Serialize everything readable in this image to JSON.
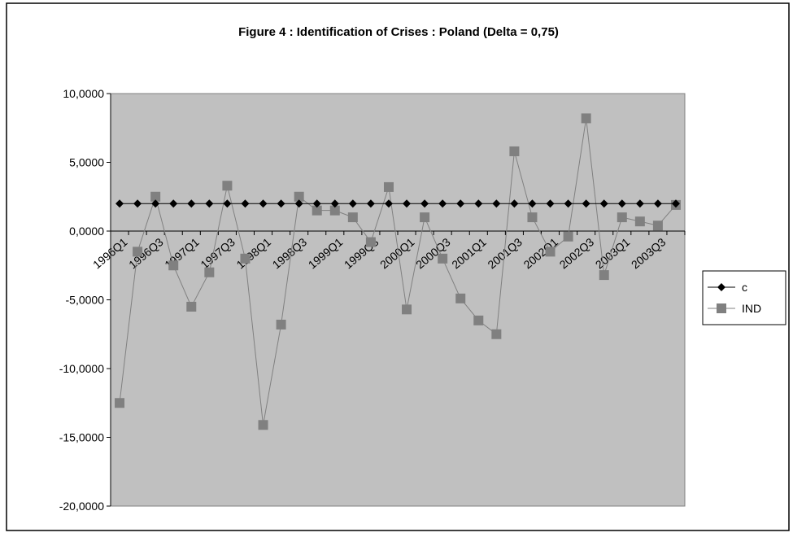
{
  "chart_data": {
    "type": "line",
    "title": "Figure 4 : Identification of Crises : Poland (Delta = 0,75)",
    "categories": [
      "1996Q1",
      null,
      "1996Q3",
      null,
      "1997Q1",
      null,
      "1997Q3",
      null,
      "1998Q1",
      null,
      "1998Q3",
      null,
      "1999Q1",
      null,
      "1999Q3",
      null,
      "2000Q1",
      null,
      "2000Q3",
      null,
      "2001Q1",
      null,
      "2001Q3",
      null,
      "2002Q1",
      null,
      "2002Q3",
      null,
      "2003Q1",
      null,
      "2003Q3",
      null
    ],
    "series": [
      {
        "name": "c",
        "color": "#000000",
        "marker": "diamond",
        "values": [
          2,
          2,
          2,
          2,
          2,
          2,
          2,
          2,
          2,
          2,
          2,
          2,
          2,
          2,
          2,
          2,
          2,
          2,
          2,
          2,
          2,
          2,
          2,
          2,
          2,
          2,
          2,
          2,
          2,
          2,
          2,
          2
        ]
      },
      {
        "name": "IND",
        "color": "#808080",
        "marker": "square",
        "values": [
          -12.5,
          -1.5,
          2.5,
          -2.5,
          -5.5,
          -3.0,
          3.3,
          -2.0,
          -14.1,
          -6.8,
          2.5,
          1.5,
          1.5,
          1.0,
          -0.8,
          3.2,
          -5.7,
          1.0,
          -2.0,
          -4.9,
          -6.5,
          -7.5,
          5.8,
          1.0,
          -1.5,
          -0.4,
          8.2,
          -3.2,
          1.0,
          0.7,
          0.4,
          1.9
        ]
      }
    ],
    "ylim": [
      -20,
      10
    ],
    "yticks": [
      {
        "value": -20,
        "label": "-20,0000"
      },
      {
        "value": -15,
        "label": "-15,0000"
      },
      {
        "value": -10,
        "label": "-10,0000"
      },
      {
        "value": -5,
        "label": "-5,0000"
      },
      {
        "value": 0,
        "label": "0,0000"
      },
      {
        "value": 5,
        "label": "5,0000"
      },
      {
        "value": 10,
        "label": "10,0000"
      }
    ],
    "grid": false,
    "legend": "right"
  }
}
